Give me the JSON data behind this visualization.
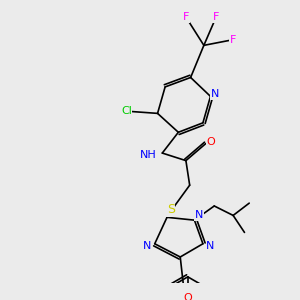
{
  "bg_color": "#ebebeb",
  "atom_colors": {
    "C": "#000000",
    "N": "#0000ff",
    "O": "#ff0000",
    "S": "#cccc00",
    "F": "#ff00ff",
    "Cl": "#00cc00",
    "H": "#000000"
  },
  "figsize": [
    3.0,
    3.0
  ],
  "dpi": 100
}
